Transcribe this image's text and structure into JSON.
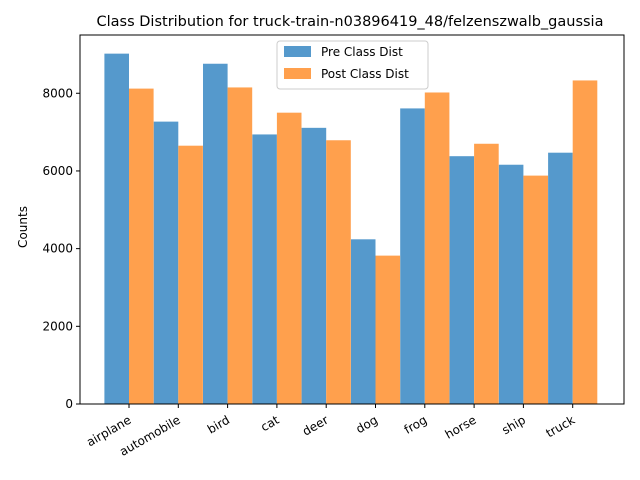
{
  "chart_data": {
    "type": "bar",
    "title": "Class Distribution for truck-train-n03896419_48/felzenszwalb_gaussia",
    "xlabel": "",
    "ylabel": "Counts",
    "categories": [
      "airplane",
      "automobile",
      "bird",
      "cat",
      "deer",
      "dog",
      "frog",
      "horse",
      "ship",
      "truck"
    ],
    "series": [
      {
        "name": "Pre Class Dist",
        "color": "#5599cc",
        "values": [
          9020,
          7270,
          8760,
          6940,
          7110,
          4240,
          7610,
          6380,
          6160,
          6470
        ]
      },
      {
        "name": "Post Class Dist",
        "color": "#ffa04d",
        "values": [
          8120,
          6650,
          8150,
          7500,
          6790,
          3820,
          8020,
          6700,
          5880,
          8330
        ]
      }
    ],
    "ylim": [
      0,
      9500
    ],
    "yticks": [
      "0",
      "2000",
      "4000",
      "6000",
      "8000"
    ],
    "grid": false,
    "legend_position": "top-center"
  }
}
